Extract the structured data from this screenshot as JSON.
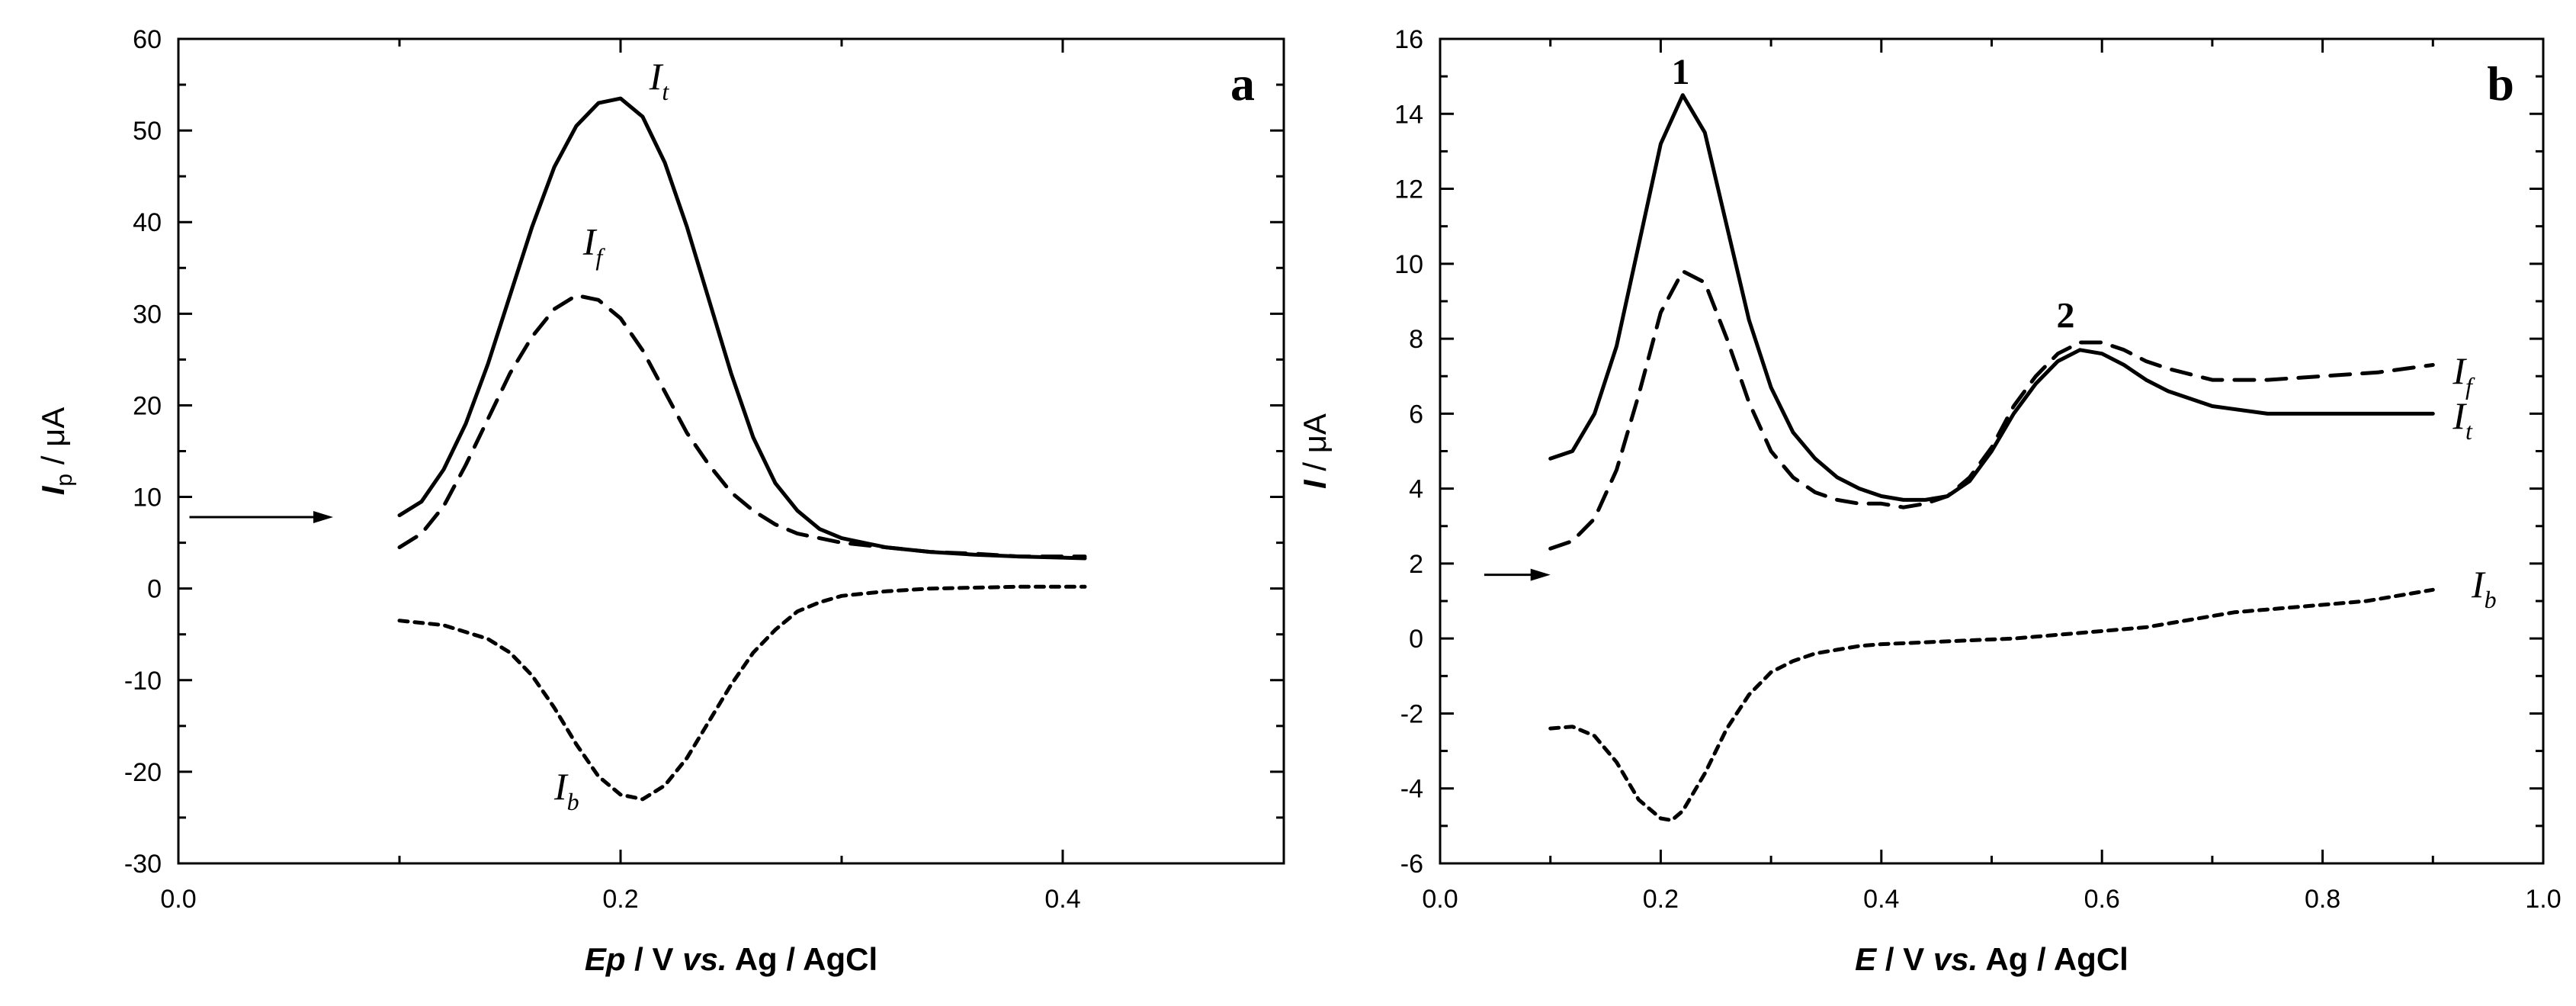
{
  "chart_data": [
    {
      "type": "line",
      "panel_label": "a",
      "xlabel": {
        "var": "Ep",
        "rest": " / V ",
        "vs": "vs.",
        "ref": " Ag / AgCl"
      },
      "ylabel": {
        "var": "I",
        "sub": "p",
        "unit": " / μA"
      },
      "xlim": [
        0.0,
        0.5
      ],
      "ylim": [
        -30,
        60
      ],
      "xticks": [
        0.0,
        0.2,
        0.4
      ],
      "xtick_labels": [
        "0.0",
        "0.2",
        "0.4"
      ],
      "yticks": [
        -30,
        -20,
        -10,
        0,
        10,
        20,
        30,
        40,
        50,
        60
      ],
      "ytick_labels": [
        "-30",
        "-20",
        "-10",
        "0",
        "10",
        "20",
        "30",
        "40",
        "50",
        "60"
      ],
      "arrow": {
        "from": [
          0.005,
          7.8
        ],
        "to": [
          0.07,
          7.8
        ]
      },
      "series": [
        {
          "name": "It",
          "label_main": "I",
          "label_sub": "t",
          "style": "solid",
          "label_at": [
            0.213,
            54.5
          ],
          "x": [
            0.1,
            0.11,
            0.12,
            0.13,
            0.14,
            0.15,
            0.16,
            0.17,
            0.18,
            0.19,
            0.2,
            0.21,
            0.22,
            0.23,
            0.24,
            0.25,
            0.26,
            0.27,
            0.28,
            0.29,
            0.3,
            0.32,
            0.34,
            0.36,
            0.38,
            0.41
          ],
          "y": [
            8.0,
            9.5,
            13.0,
            18.0,
            24.5,
            32.0,
            39.5,
            46.0,
            50.5,
            53.0,
            53.5,
            51.5,
            46.5,
            39.5,
            31.5,
            23.5,
            16.5,
            11.5,
            8.5,
            6.5,
            5.5,
            4.5,
            4.0,
            3.7,
            3.5,
            3.3
          ]
        },
        {
          "name": "If",
          "label_main": "I",
          "label_sub": "f",
          "style": "dashed",
          "label_at": [
            0.183,
            36.5
          ],
          "x": [
            0.1,
            0.11,
            0.12,
            0.13,
            0.14,
            0.15,
            0.16,
            0.17,
            0.18,
            0.19,
            0.2,
            0.21,
            0.22,
            0.23,
            0.24,
            0.25,
            0.26,
            0.27,
            0.28,
            0.29,
            0.3,
            0.32,
            0.34,
            0.36,
            0.38,
            0.41
          ],
          "y": [
            4.5,
            6.0,
            9.0,
            13.5,
            18.5,
            23.5,
            27.5,
            30.5,
            32.0,
            31.5,
            29.5,
            26.0,
            21.5,
            17.0,
            13.5,
            10.5,
            8.5,
            7.0,
            6.0,
            5.5,
            5.0,
            4.5,
            4.0,
            3.8,
            3.5,
            3.5
          ]
        },
        {
          "name": "Ib",
          "label_main": "I",
          "label_sub": "b",
          "style": "dotted",
          "label_at": [
            0.17,
            -23.0
          ],
          "x": [
            0.1,
            0.12,
            0.14,
            0.15,
            0.16,
            0.17,
            0.18,
            0.19,
            0.2,
            0.21,
            0.22,
            0.23,
            0.24,
            0.25,
            0.26,
            0.27,
            0.28,
            0.29,
            0.3,
            0.32,
            0.34,
            0.36,
            0.38,
            0.41
          ],
          "y": [
            -3.5,
            -4.0,
            -5.5,
            -7.0,
            -9.5,
            -13.0,
            -17.0,
            -20.5,
            -22.5,
            -23.0,
            -21.5,
            -18.5,
            -14.5,
            -10.5,
            -7.0,
            -4.5,
            -2.5,
            -1.5,
            -0.8,
            -0.3,
            0.0,
            0.1,
            0.2,
            0.2
          ]
        }
      ]
    },
    {
      "type": "line",
      "panel_label": "b",
      "xlabel": {
        "var": "E",
        "rest": " / V ",
        "vs": "vs.",
        "ref": "  Ag / AgCl"
      },
      "ylabel": {
        "var": "I",
        "sub": "",
        "unit": " / μA"
      },
      "xlim": [
        0.0,
        1.0
      ],
      "ylim": [
        -6,
        16
      ],
      "xticks": [
        0.0,
        0.2,
        0.4,
        0.6,
        0.8,
        1.0
      ],
      "xtick_labels": [
        "0.0",
        "0.2",
        "0.4",
        "0.6",
        "0.8",
        "1.0"
      ],
      "yticks": [
        -6,
        -4,
        -2,
        0,
        2,
        4,
        6,
        8,
        10,
        12,
        14,
        16
      ],
      "ytick_labels": [
        "-6",
        "-4",
        "-2",
        "0",
        "2",
        "4",
        "6",
        "8",
        "10",
        "12",
        "14",
        "16"
      ],
      "arrow": {
        "from": [
          0.04,
          1.7
        ],
        "to": [
          0.1,
          1.7
        ]
      },
      "peak_labels": [
        {
          "text": "1",
          "at": [
            0.218,
            14.8
          ]
        },
        {
          "text": "2",
          "at": [
            0.567,
            8.3
          ]
        }
      ],
      "series": [
        {
          "name": "It",
          "label_main": "I",
          "label_sub": "t",
          "style": "solid",
          "label_at": [
            0.918,
            5.6
          ],
          "x": [
            0.1,
            0.12,
            0.14,
            0.16,
            0.18,
            0.2,
            0.22,
            0.24,
            0.26,
            0.28,
            0.3,
            0.32,
            0.34,
            0.36,
            0.38,
            0.4,
            0.42,
            0.44,
            0.46,
            0.48,
            0.5,
            0.52,
            0.54,
            0.56,
            0.58,
            0.6,
            0.62,
            0.64,
            0.66,
            0.7,
            0.75,
            0.8,
            0.85,
            0.9
          ],
          "y": [
            4.8,
            5.0,
            6.0,
            7.8,
            10.5,
            13.2,
            14.5,
            13.5,
            11.0,
            8.5,
            6.7,
            5.5,
            4.8,
            4.3,
            4.0,
            3.8,
            3.7,
            3.7,
            3.8,
            4.2,
            5.0,
            6.0,
            6.8,
            7.4,
            7.7,
            7.6,
            7.3,
            6.9,
            6.6,
            6.2,
            6.0,
            6.0,
            6.0,
            6.0
          ]
        },
        {
          "name": "If",
          "label_main": "I",
          "label_sub": "f",
          "style": "dashed",
          "label_at": [
            0.918,
            6.8
          ],
          "x": [
            0.1,
            0.12,
            0.14,
            0.16,
            0.18,
            0.2,
            0.22,
            0.24,
            0.26,
            0.28,
            0.3,
            0.32,
            0.34,
            0.36,
            0.38,
            0.4,
            0.42,
            0.44,
            0.46,
            0.48,
            0.5,
            0.52,
            0.54,
            0.56,
            0.58,
            0.6,
            0.62,
            0.64,
            0.66,
            0.7,
            0.75,
            0.8,
            0.85,
            0.9
          ],
          "y": [
            2.4,
            2.6,
            3.2,
            4.5,
            6.5,
            8.7,
            9.8,
            9.5,
            8.0,
            6.3,
            5.0,
            4.3,
            3.9,
            3.7,
            3.6,
            3.6,
            3.5,
            3.6,
            3.8,
            4.3,
            5.1,
            6.2,
            7.0,
            7.6,
            7.9,
            7.9,
            7.7,
            7.4,
            7.2,
            6.9,
            6.9,
            7.0,
            7.1,
            7.3
          ]
        },
        {
          "name": "Ib",
          "label_main": "I",
          "label_sub": "b",
          "style": "dotted",
          "label_at": [
            0.935,
            1.1
          ],
          "x": [
            0.1,
            0.12,
            0.14,
            0.16,
            0.18,
            0.2,
            0.21,
            0.22,
            0.24,
            0.26,
            0.28,
            0.3,
            0.32,
            0.34,
            0.36,
            0.38,
            0.4,
            0.44,
            0.48,
            0.52,
            0.56,
            0.6,
            0.64,
            0.68,
            0.72,
            0.76,
            0.8,
            0.84,
            0.9
          ],
          "y": [
            -2.4,
            -2.35,
            -2.6,
            -3.3,
            -4.3,
            -4.8,
            -4.85,
            -4.6,
            -3.6,
            -2.4,
            -1.5,
            -0.9,
            -0.6,
            -0.4,
            -0.3,
            -0.2,
            -0.15,
            -0.1,
            -0.05,
            0.0,
            0.1,
            0.2,
            0.3,
            0.5,
            0.7,
            0.8,
            0.9,
            1.0,
            1.3
          ]
        }
      ]
    }
  ]
}
